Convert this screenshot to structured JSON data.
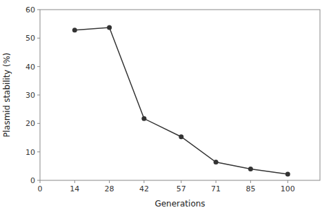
{
  "chart_data": {
    "type": "line",
    "x": [
      14,
      28,
      42,
      57,
      71,
      85,
      100
    ],
    "values": [
      52.8,
      53.7,
      21.7,
      15.3,
      6.4,
      4.0,
      2.2
    ],
    "xlabel": "Generations",
    "ylabel": "Plasmid stability (%)",
    "xlim": [
      0,
      113
    ],
    "ylim": [
      0,
      60
    ],
    "xticks": [
      0,
      14,
      28,
      42,
      57,
      71,
      85,
      100
    ],
    "yticks": [
      0,
      10,
      20,
      30,
      40,
      50,
      60
    ],
    "color": "#333333",
    "marker": "circle",
    "grid": false
  }
}
